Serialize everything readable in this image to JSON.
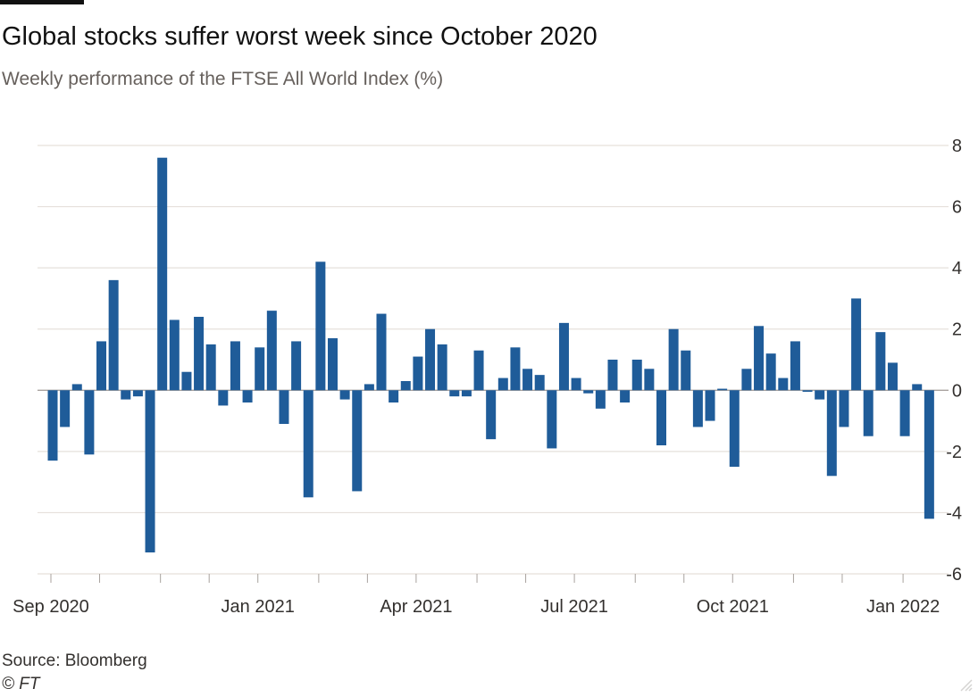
{
  "header": {
    "title": "Global stocks suffer worst week since October 2020",
    "subtitle": "Weekly performance of the FTSE All World Index (%)"
  },
  "footer": {
    "source": "Source: Bloomberg",
    "credit": "© FT"
  },
  "colors": {
    "bar": "#1f5c99",
    "grid": "#e6e0db",
    "zero_line": "#a8a29e",
    "text": "#33302e",
    "subtitle": "#66605c"
  },
  "icons": {
    "resize": "resize-grip-icon"
  },
  "chart_data": {
    "type": "bar",
    "title": "Global stocks suffer worst week since October 2020",
    "subtitle": "Weekly performance of the FTSE All World Index (%)",
    "xlabel": "",
    "ylabel": "",
    "ylim": [
      -6,
      8
    ],
    "yticks": [
      8,
      6,
      4,
      2,
      0,
      -2,
      -4,
      -6
    ],
    "grid": true,
    "legend": "none",
    "y_axis_position": "right",
    "x_tick_labels": [
      "Sep 2020",
      "Jan 2021",
      "Apr 2021",
      "Jul 2021",
      "Oct 2021",
      "Jan 2022"
    ],
    "x_tick_label_week_index": [
      0,
      17,
      30,
      43,
      56,
      70
    ],
    "week_start": "Sep 2020",
    "values": [
      -2.3,
      -1.2,
      0.2,
      -2.1,
      1.6,
      3.6,
      -0.3,
      -0.2,
      -5.3,
      7.6,
      2.3,
      0.6,
      2.4,
      1.5,
      -0.5,
      1.6,
      -0.4,
      1.4,
      2.6,
      -1.1,
      1.6,
      -3.5,
      4.2,
      1.7,
      -0.3,
      -3.3,
      0.2,
      2.5,
      -0.4,
      0.3,
      1.1,
      2.0,
      1.5,
      -0.2,
      -0.2,
      1.3,
      -1.6,
      0.4,
      1.4,
      0.7,
      0.5,
      -1.9,
      2.2,
      0.4,
      -0.1,
      -0.6,
      1.0,
      -0.4,
      1.0,
      0.7,
      -1.8,
      2.0,
      1.3,
      -1.2,
      -1.0,
      0.05,
      -2.5,
      0.7,
      2.1,
      1.2,
      0.4,
      1.6,
      -0.05,
      -0.3,
      -2.8,
      -1.2,
      3.0,
      -1.5,
      1.9,
      0.9,
      -1.5,
      0.2,
      -4.2
    ]
  }
}
